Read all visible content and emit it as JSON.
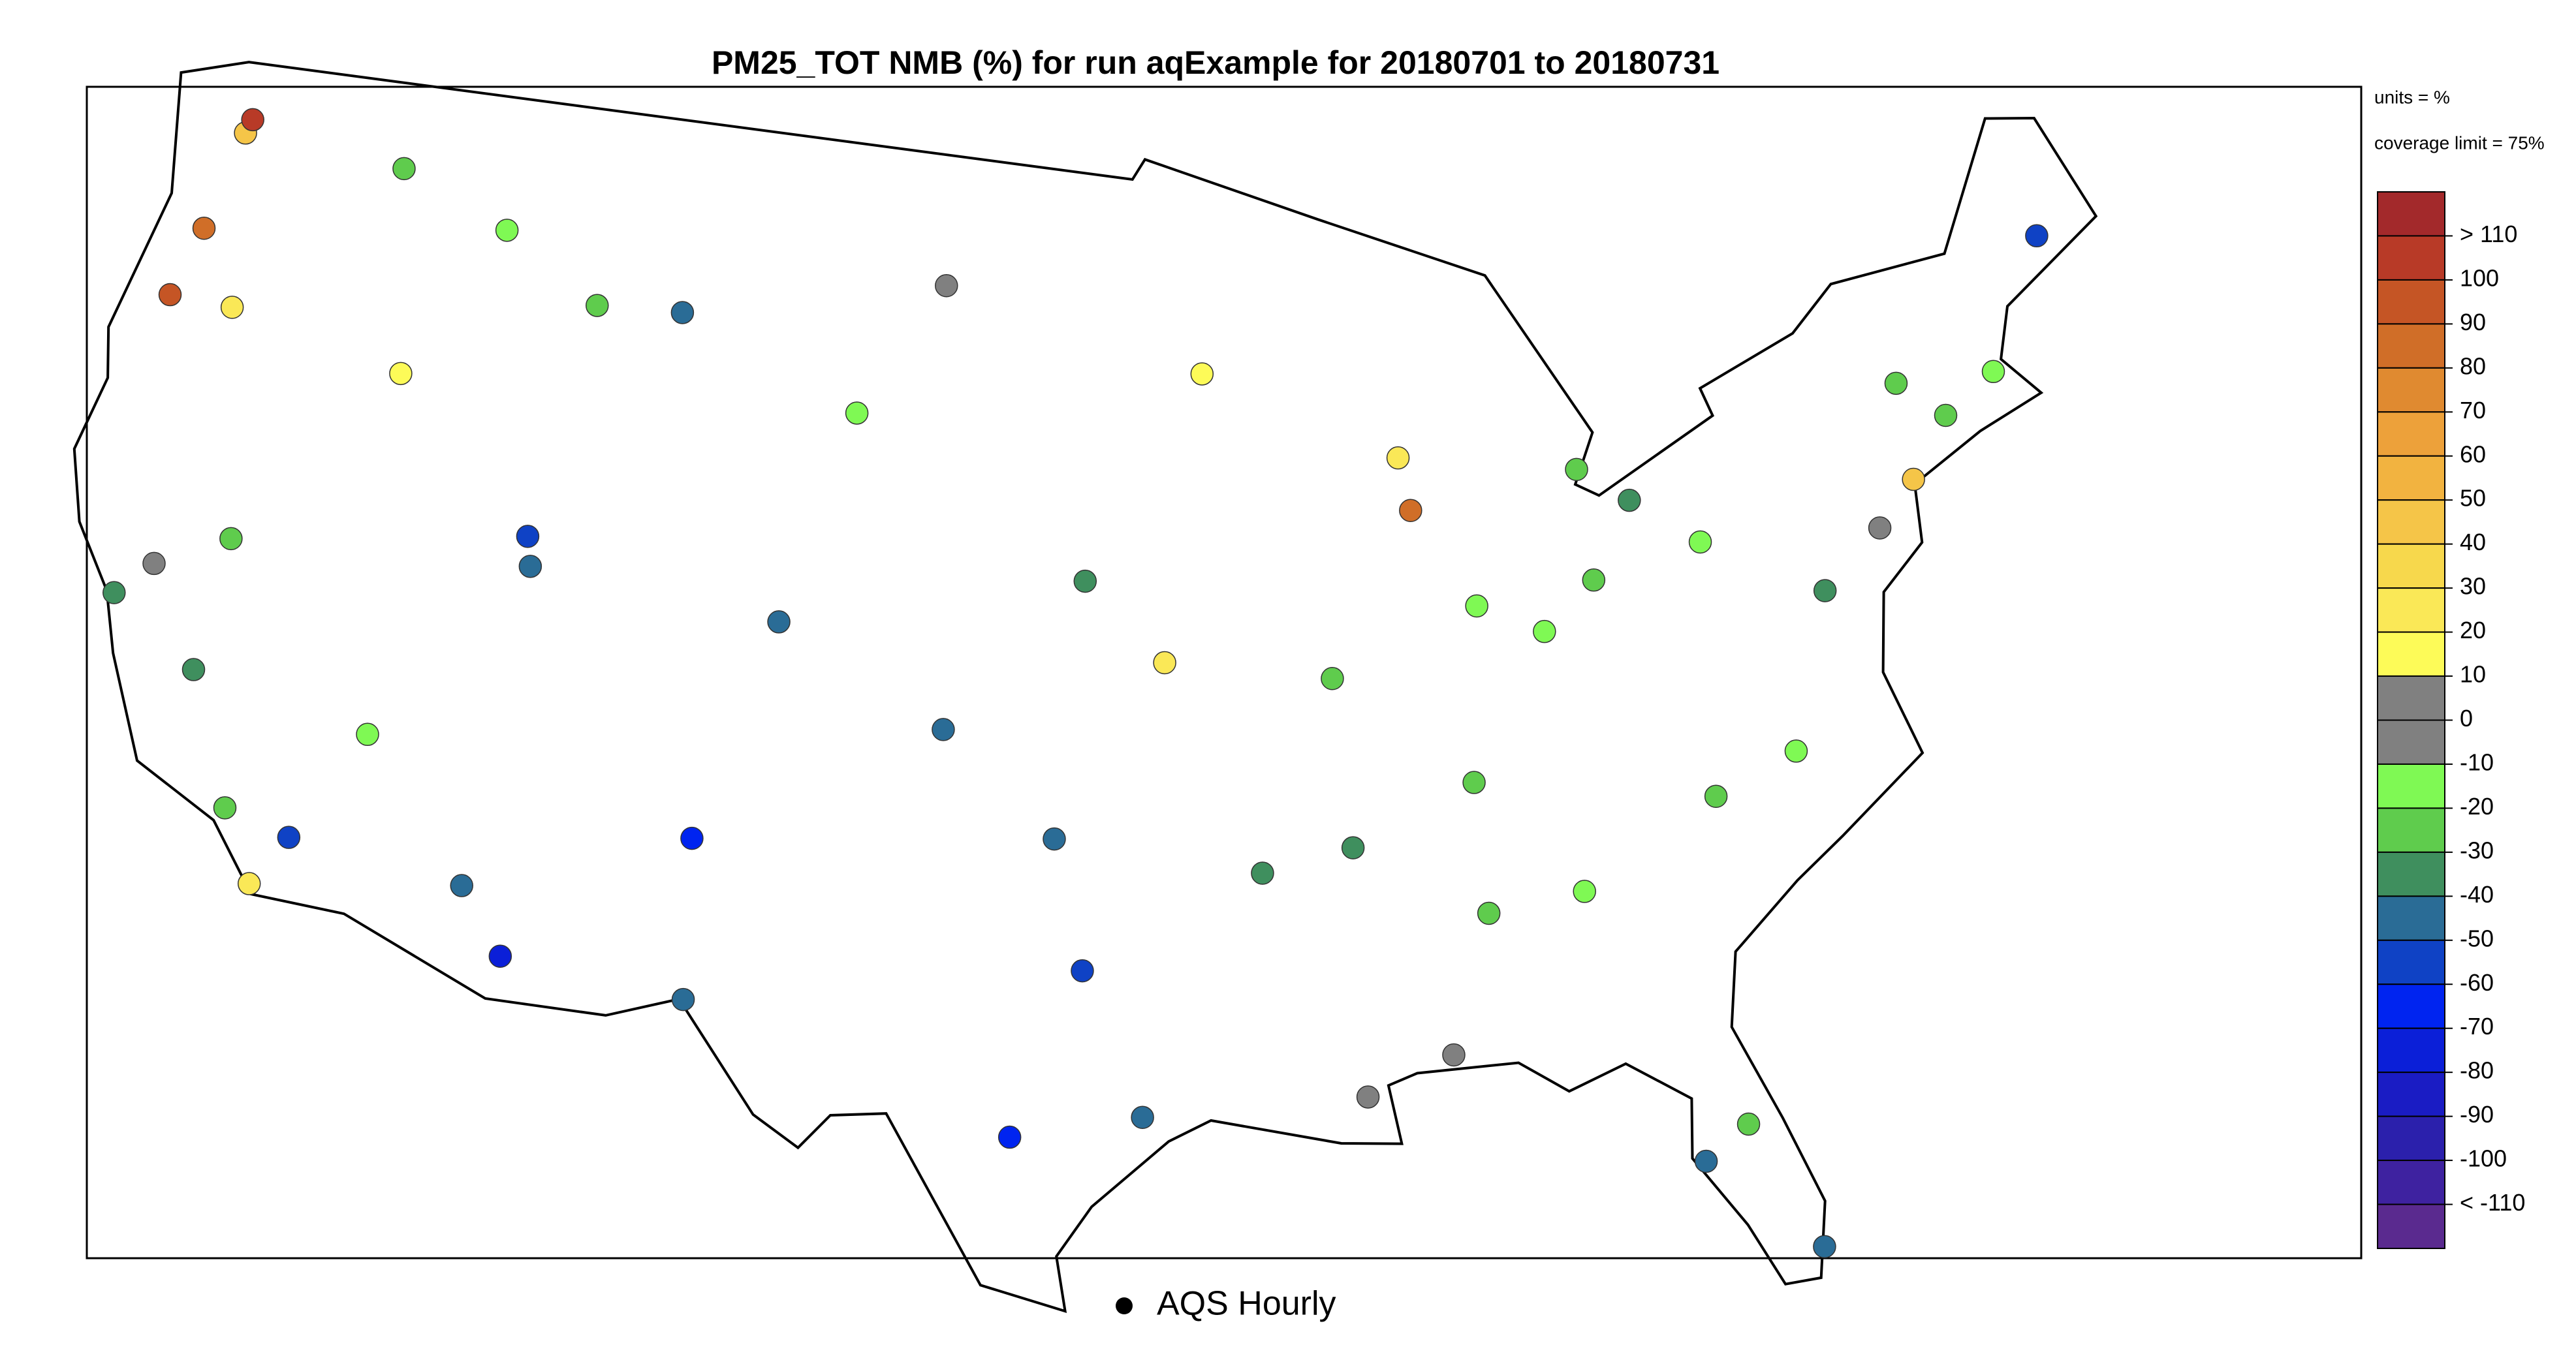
{
  "chart_data": {
    "type": "map",
    "title": "PM25_TOT NMB (%) for run aqExample for 20180701 to 20180731",
    "units_note": "units = %",
    "coverage_note": "coverage limit = 75%",
    "legend_label": "AQS Hourly",
    "legend": {
      "breaks": [
        {
          "value": 110,
          "label": "> 110"
        },
        100,
        90,
        80,
        70,
        60,
        50,
        40,
        30,
        20,
        10,
        0,
        -10,
        -20,
        -30,
        -40,
        -50,
        -60,
        -70,
        -80,
        -90,
        -100,
        {
          "value": -110,
          "label": "< -110"
        }
      ],
      "colors": [
        "#a3292b",
        "#b83a27",
        "#c55525",
        "#d06e28",
        "#e08a30",
        "#eda13a",
        "#f2b340",
        "#f5c548",
        "#f7d84c",
        "#fae857",
        "#fdfb58",
        "#808080",
        "#808080",
        "#7ff954",
        "#5fcc4d",
        "#3f8f5e",
        "#2a6c96",
        "#0f42c5",
        "#0024f0",
        "#0b1fd8",
        "#1a1cc4",
        "#2b20ac",
        "#3e22a0",
        "#5a2a8f"
      ]
    },
    "sites": [
      {
        "lon": -122.3,
        "lat": 47.6,
        "value": 45
      },
      {
        "lon": -122.2,
        "lat": 47.9,
        "value": 105
      },
      {
        "lon": -122.7,
        "lat": 45.5,
        "value": 85
      },
      {
        "lon": -123.1,
        "lat": 44.0,
        "value": 95
      },
      {
        "lon": -121.3,
        "lat": 44.1,
        "value": 25
      },
      {
        "lon": -117.4,
        "lat": 47.7,
        "value": -25
      },
      {
        "lon": -116.2,
        "lat": 43.6,
        "value": 15
      },
      {
        "lon": -114.0,
        "lat": 46.9,
        "value": -15
      },
      {
        "lon": -111.9,
        "lat": 40.8,
        "value": -55
      },
      {
        "lon": -111.7,
        "lat": 40.2,
        "value": -45
      },
      {
        "lon": -104.9,
        "lat": 39.7,
        "value": -45
      },
      {
        "lon": -106.6,
        "lat": 35.1,
        "value": -65
      },
      {
        "lon": -112.1,
        "lat": 33.5,
        "value": -45
      },
      {
        "lon": -110.9,
        "lat": 32.2,
        "value": -75
      },
      {
        "lon": -118.2,
        "lat": 34.1,
        "value": -25
      },
      {
        "lon": -117.2,
        "lat": 32.7,
        "value": 25
      },
      {
        "lon": -119.8,
        "lat": 36.7,
        "value": -35
      },
      {
        "lon": -121.5,
        "lat": 38.6,
        "value": -5
      },
      {
        "lon": -122.3,
        "lat": 37.8,
        "value": -35
      },
      {
        "lon": -115.1,
        "lat": 36.2,
        "value": -15
      },
      {
        "lon": -108.5,
        "lat": 45.8,
        "value": -45
      },
      {
        "lon": -100.8,
        "lat": 46.8,
        "value": -5
      },
      {
        "lon": -96.7,
        "lat": 40.8,
        "value": -35
      },
      {
        "lon": -97.5,
        "lat": 35.5,
        "value": -45
      },
      {
        "lon": -96.8,
        "lat": 32.8,
        "value": -55
      },
      {
        "lon": -95.4,
        "lat": 29.8,
        "value": -45
      },
      {
        "lon": -98.5,
        "lat": 29.4,
        "value": -65
      },
      {
        "lon": -106.4,
        "lat": 31.8,
        "value": -45
      },
      {
        "lon": -94.6,
        "lat": 39.1,
        "value": 25
      },
      {
        "lon": -93.3,
        "lat": 45.0,
        "value": 15
      },
      {
        "lon": -90.2,
        "lat": 38.6,
        "value": -25
      },
      {
        "lon": -87.7,
        "lat": 41.9,
        "value": 85
      },
      {
        "lon": -87.9,
        "lat": 43.0,
        "value": 25
      },
      {
        "lon": -86.2,
        "lat": 39.8,
        "value": -15
      },
      {
        "lon": -83.0,
        "lat": 40.0,
        "value": -25
      },
      {
        "lon": -83.0,
        "lat": 42.3,
        "value": -25
      },
      {
        "lon": -84.4,
        "lat": 33.7,
        "value": -15
      },
      {
        "lon": -86.8,
        "lat": 33.5,
        "value": -25
      },
      {
        "lon": -90.1,
        "lat": 30.0,
        "value": -5
      },
      {
        "lon": -81.7,
        "lat": 41.5,
        "value": -35
      },
      {
        "lon": -80.0,
        "lat": 40.4,
        "value": -15
      },
      {
        "lon": -77.0,
        "lat": 38.9,
        "value": -35
      },
      {
        "lon": -75.2,
        "lat": 39.9,
        "value": -5
      },
      {
        "lon": -74.0,
        "lat": 40.7,
        "value": 45
      },
      {
        "lon": -71.1,
        "lat": 42.4,
        "value": -15
      },
      {
        "lon": -73.8,
        "lat": 42.7,
        "value": -25
      },
      {
        "lon": -80.2,
        "lat": 25.8,
        "value": -45
      },
      {
        "lon": -81.4,
        "lat": 28.5,
        "value": -25
      },
      {
        "lon": -82.5,
        "lat": 27.9,
        "value": -45
      },
      {
        "lon": -78.6,
        "lat": 35.8,
        "value": -15
      },
      {
        "lon": -80.8,
        "lat": 35.2,
        "value": -25
      },
      {
        "lon": -90.0,
        "lat": 35.1,
        "value": -35
      },
      {
        "lon": -86.8,
        "lat": 36.2,
        "value": -25
      },
      {
        "lon": -84.5,
        "lat": 39.1,
        "value": -15
      },
      {
        "lon": -72.7,
        "lat": 41.8,
        "value": -25
      },
      {
        "lon": -68.8,
        "lat": 44.8,
        "value": -55
      },
      {
        "lon": -92.3,
        "lat": 34.7,
        "value": -35
      },
      {
        "lon": -88.0,
        "lat": 30.7,
        "value": -5
      },
      {
        "lon": -100.4,
        "lat": 37.7,
        "value": -45
      },
      {
        "lon": -103.2,
        "lat": 44.1,
        "value": -15
      },
      {
        "lon": -111.0,
        "lat": 45.7,
        "value": -25
      },
      {
        "lon": -119.7,
        "lat": 39.5,
        "value": -25
      },
      {
        "lon": -116.5,
        "lat": 33.8,
        "value": -55
      }
    ]
  }
}
